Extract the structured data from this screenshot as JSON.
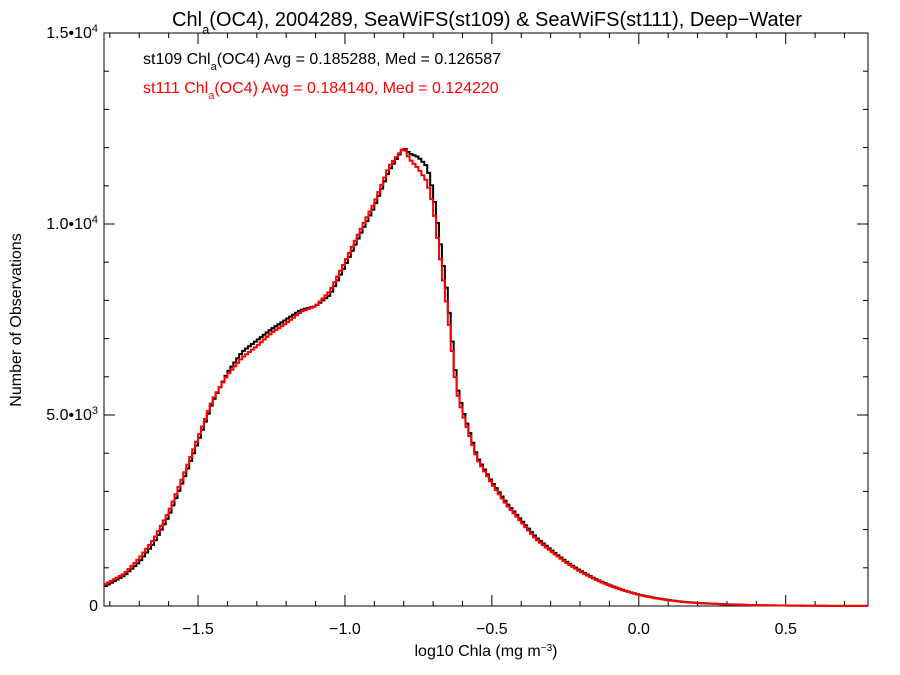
{
  "chart_data": {
    "type": "line",
    "title_parts": {
      "pre": "Chl",
      "sub": "a",
      "post": "(OC4), 2004289, SeaWiFS(st109) & SeaWiFS(st111), Deep−Water"
    },
    "xlabel": {
      "pre": "log10 Chla (mg m",
      "sup": "−3",
      "post": ")"
    },
    "ylabel": "Number of Observations",
    "xlim": [
      -1.82,
      0.78
    ],
    "ylim": [
      0,
      15000
    ],
    "grid": false,
    "step": true,
    "x_ticks": [
      {
        "value": -1.5,
        "label": "−1.5"
      },
      {
        "value": -1.0,
        "label": "−1.0"
      },
      {
        "value": -0.5,
        "label": "−0.5"
      },
      {
        "value": 0.0,
        "label": "0.0"
      },
      {
        "value": 0.5,
        "label": "0.5"
      }
    ],
    "y_ticks": [
      {
        "value": 0,
        "mant": "0",
        "exp": ""
      },
      {
        "value": 5000,
        "mant": "5.0•10",
        "exp": "3"
      },
      {
        "value": 10000,
        "mant": "1.0•10",
        "exp": "4"
      },
      {
        "value": 15000,
        "mant": "1.5•10",
        "exp": "4"
      }
    ],
    "legend": [
      {
        "pre": "st109 Chl",
        "sub": "a",
        "post": "(OC4) Avg = 0.185288, Med = 0.126587",
        "color": "#000000"
      },
      {
        "pre": "st111 Chl",
        "sub": "a",
        "post": "(OC4) Avg = 0.184140, Med = 0.124220",
        "color": "#ff0000"
      }
    ],
    "legend_position": "top-left",
    "series": [
      {
        "name": "st109",
        "color": "#000000",
        "x": [
          -1.82,
          -1.75,
          -1.7,
          -1.65,
          -1.6,
          -1.55,
          -1.5,
          -1.45,
          -1.4,
          -1.35,
          -1.3,
          -1.25,
          -1.2,
          -1.15,
          -1.1,
          -1.05,
          -1.0,
          -0.95,
          -0.9,
          -0.85,
          -0.8,
          -0.78,
          -0.75,
          -0.72,
          -0.7,
          -0.68,
          -0.65,
          -0.62,
          -0.6,
          -0.55,
          -0.5,
          -0.45,
          -0.4,
          -0.35,
          -0.3,
          -0.25,
          -0.2,
          -0.15,
          -0.1,
          -0.05,
          0.0,
          0.05,
          0.1,
          0.15,
          0.2,
          0.3,
          0.4,
          0.5,
          0.6,
          0.7,
          0.78
        ],
        "y": [
          500,
          800,
          1150,
          1650,
          2350,
          3300,
          4300,
          5350,
          6100,
          6650,
          6950,
          7250,
          7500,
          7750,
          7850,
          8150,
          8900,
          9700,
          10450,
          11400,
          12000,
          11850,
          11750,
          11500,
          10850,
          9750,
          8050,
          5800,
          5150,
          3900,
          3250,
          2700,
          2250,
          1800,
          1480,
          1180,
          930,
          720,
          550,
          410,
          300,
          220,
          160,
          110,
          80,
          45,
          22,
          12,
          6,
          3,
          2
        ]
      },
      {
        "name": "st111",
        "color": "#ff0000",
        "x": [
          -1.82,
          -1.75,
          -1.7,
          -1.65,
          -1.6,
          -1.55,
          -1.5,
          -1.45,
          -1.4,
          -1.35,
          -1.3,
          -1.25,
          -1.2,
          -1.15,
          -1.1,
          -1.05,
          -1.0,
          -0.95,
          -0.9,
          -0.85,
          -0.8,
          -0.78,
          -0.75,
          -0.72,
          -0.7,
          -0.68,
          -0.65,
          -0.62,
          -0.6,
          -0.55,
          -0.5,
          -0.45,
          -0.4,
          -0.35,
          -0.3,
          -0.25,
          -0.2,
          -0.15,
          -0.1,
          -0.05,
          0.0,
          0.05,
          0.1,
          0.15,
          0.2,
          0.3,
          0.4,
          0.5,
          0.6,
          0.7,
          0.78
        ],
        "y": [
          550,
          850,
          1250,
          1750,
          2450,
          3400,
          4400,
          5400,
          6050,
          6500,
          6800,
          7150,
          7400,
          7700,
          7850,
          8250,
          9000,
          9800,
          10550,
          11500,
          12000,
          11700,
          11450,
          11100,
          10500,
          9350,
          7700,
          5650,
          5050,
          3850,
          3200,
          2650,
          2200,
          1750,
          1440,
          1150,
          900,
          700,
          530,
          400,
          290,
          210,
          150,
          105,
          75,
          42,
          20,
          11,
          5,
          3,
          2
        ]
      }
    ]
  }
}
